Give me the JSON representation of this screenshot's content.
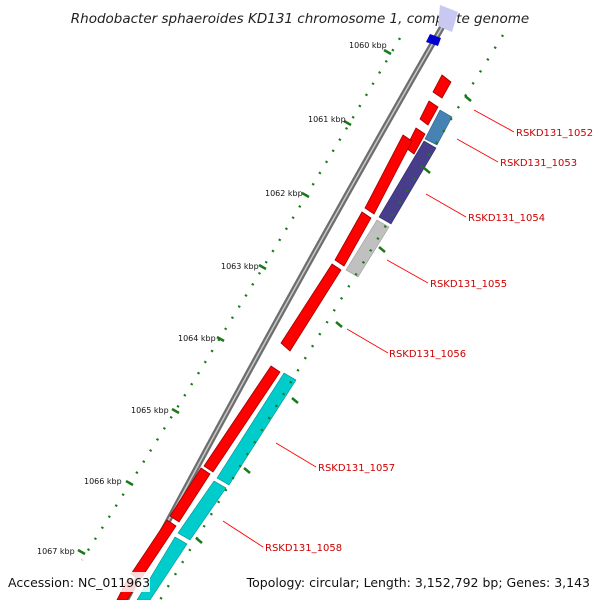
{
  "title": "Rhodobacter sphaeroides KD131 chromosome 1, complete genome",
  "accession": "Accession: NC_011963",
  "topology": "Topology: circular; Length: 3,152,792 bp; Genes: 3,143",
  "ticks": [
    "1060 kbp",
    "1061 kbp",
    "1062 kbp",
    "1063 kbp",
    "1064 kbp",
    "1065 kbp",
    "1066 kbp",
    "1067 kbp"
  ],
  "genes": [
    {
      "label": "RSKD131_1052",
      "color": "#ff0000"
    },
    {
      "label": "RSKD131_1053",
      "color": "#4682b4"
    },
    {
      "label": "RSKD131_1054",
      "color": "#483d8b"
    },
    {
      "label": "RSKD131_1055",
      "color": "#c0c0c0"
    },
    {
      "label": "RSKD131_1056",
      "color": "#ff0000"
    },
    {
      "label": "RSKD131_1057",
      "color": "#ff0000"
    },
    {
      "label": "RSKD131_1058",
      "color": "#00cccc"
    }
  ],
  "colors": {
    "backbone": "#808080",
    "forward_cds": "#ff0000",
    "reverse_cds": "#00cccc",
    "gc_ticks": "#1a7a1a",
    "label_line": "#ff0000",
    "top_feature": "#0000cc"
  }
}
